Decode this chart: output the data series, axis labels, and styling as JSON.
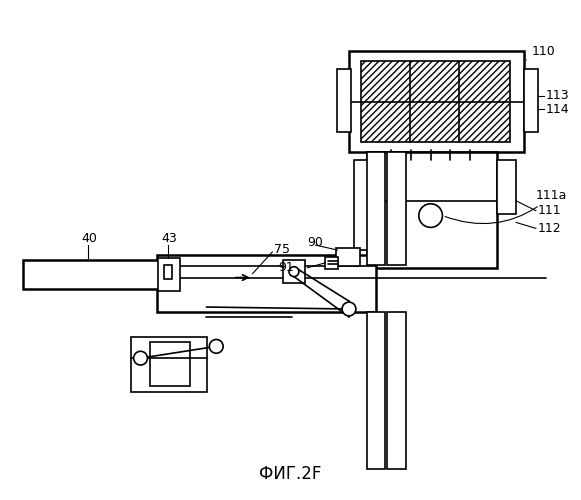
{
  "title": "ФИГ.2F",
  "bg": "#ffffff",
  "lw": 1.2,
  "lw2": 1.8
}
